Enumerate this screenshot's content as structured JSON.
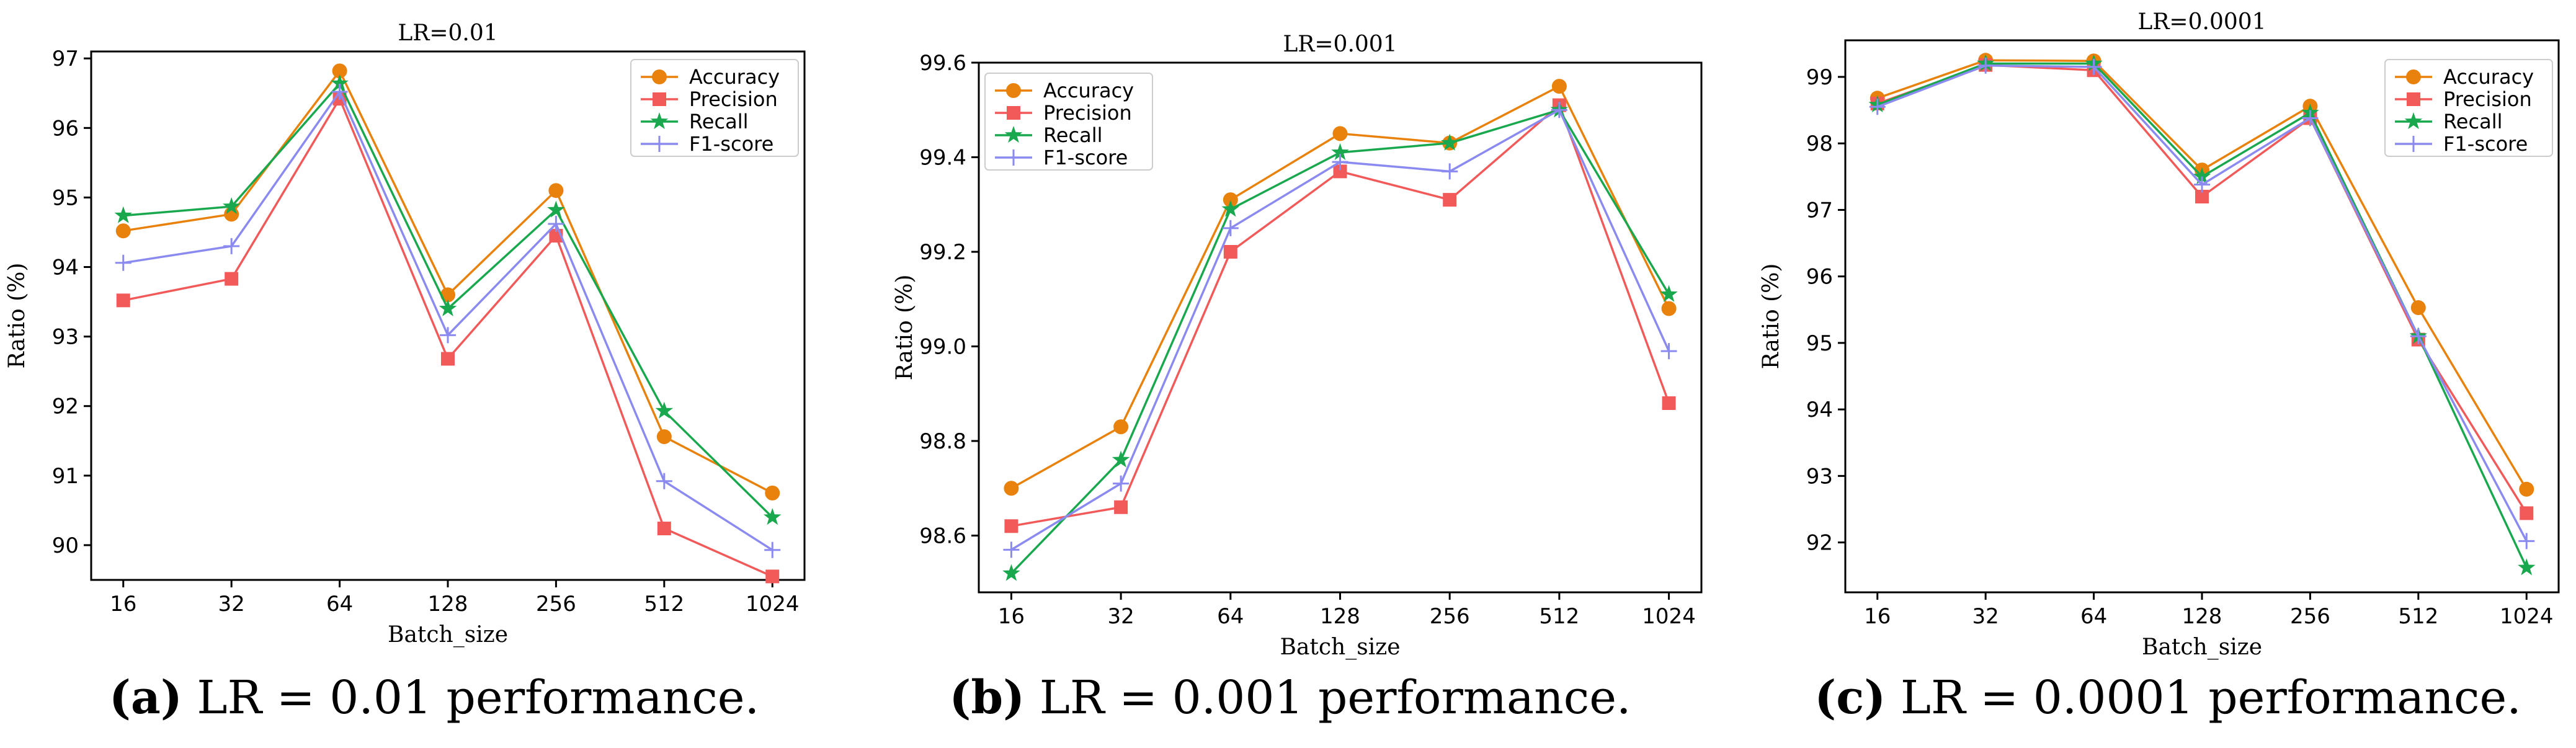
{
  "chart_data": [
    {
      "type": "line",
      "title": "LR=0.01",
      "xlabel": "Batch_size",
      "ylabel": "Ratio (%)",
      "categories": [
        "16",
        "32",
        "64",
        "128",
        "256",
        "512",
        "1024"
      ],
      "ylim": [
        89.5,
        97.1
      ],
      "yticks": [
        "90",
        "91",
        "92",
        "93",
        "94",
        "95",
        "96",
        "97"
      ],
      "legend_position": "top-right",
      "series": [
        {
          "name": "Accuracy",
          "color": "#e8820c",
          "marker": "circle",
          "values": [
            94.52,
            94.76,
            96.82,
            93.6,
            95.1,
            91.56,
            90.75
          ]
        },
        {
          "name": "Precision",
          "color": "#f25a5a",
          "marker": "square",
          "values": [
            93.52,
            93.83,
            96.42,
            92.68,
            94.45,
            90.24,
            89.55
          ]
        },
        {
          "name": "Recall",
          "color": "#19a84e",
          "marker": "star",
          "values": [
            94.74,
            94.87,
            96.64,
            93.4,
            94.82,
            91.93,
            90.4
          ]
        },
        {
          "name": "F1-score",
          "color": "#8a8af0",
          "marker": "plus",
          "values": [
            94.06,
            94.3,
            96.52,
            93.02,
            94.62,
            90.92,
            89.93
          ]
        }
      ],
      "caption": {
        "letter": "(a)",
        "text": " LR = 0.01 performance."
      }
    },
    {
      "type": "line",
      "title": "LR=0.001",
      "xlabel": "Batch_size",
      "ylabel": "Ratio (%)",
      "categories": [
        "16",
        "32",
        "64",
        "128",
        "256",
        "512",
        "1024"
      ],
      "ylim": [
        98.48,
        99.6
      ],
      "yticks": [
        "98.6",
        "98.8",
        "99.0",
        "99.2",
        "99.4",
        "99.6"
      ],
      "legend_position": "top-left",
      "series": [
        {
          "name": "Accuracy",
          "color": "#e8820c",
          "marker": "circle",
          "values": [
            98.7,
            98.83,
            99.31,
            99.45,
            99.43,
            99.55,
            99.08
          ]
        },
        {
          "name": "Precision",
          "color": "#f25a5a",
          "marker": "square",
          "values": [
            98.62,
            98.66,
            99.2,
            99.37,
            99.31,
            99.51,
            98.88
          ]
        },
        {
          "name": "Recall",
          "color": "#19a84e",
          "marker": "star",
          "values": [
            98.52,
            98.76,
            99.29,
            99.41,
            99.43,
            99.5,
            99.11
          ]
        },
        {
          "name": "F1-score",
          "color": "#8a8af0",
          "marker": "plus",
          "values": [
            98.57,
            98.71,
            99.25,
            99.39,
            99.37,
            99.5,
            98.99
          ]
        }
      ],
      "caption": {
        "letter": "(b)",
        "text": " LR = 0.001 performance."
      }
    },
    {
      "type": "line",
      "title": "LR=0.0001",
      "xlabel": "Batch_size",
      "ylabel": "Ratio (%)",
      "categories": [
        "16",
        "32",
        "64",
        "128",
        "256",
        "512",
        "1024"
      ],
      "ylim": [
        91.25,
        99.55
      ],
      "yticks": [
        "92",
        "93",
        "94",
        "95",
        "96",
        "97",
        "98",
        "99"
      ],
      "legend_position": "top-right",
      "series": [
        {
          "name": "Accuracy",
          "color": "#e8820c",
          "marker": "circle",
          "values": [
            98.68,
            99.25,
            99.24,
            97.6,
            98.56,
            95.53,
            92.8
          ]
        },
        {
          "name": "Precision",
          "color": "#f25a5a",
          "marker": "square",
          "values": [
            98.6,
            99.18,
            99.1,
            97.2,
            98.38,
            95.05,
            92.44
          ]
        },
        {
          "name": "Recall",
          "color": "#19a84e",
          "marker": "star",
          "values": [
            98.58,
            99.2,
            99.2,
            97.5,
            98.46,
            95.1,
            91.62
          ]
        },
        {
          "name": "F1-score",
          "color": "#8a8af0",
          "marker": "plus",
          "values": [
            98.55,
            99.17,
            99.15,
            97.38,
            98.38,
            95.1,
            92.02
          ]
        }
      ],
      "caption": {
        "letter": "(c)",
        "text": " LR = 0.0001 performance."
      }
    }
  ]
}
